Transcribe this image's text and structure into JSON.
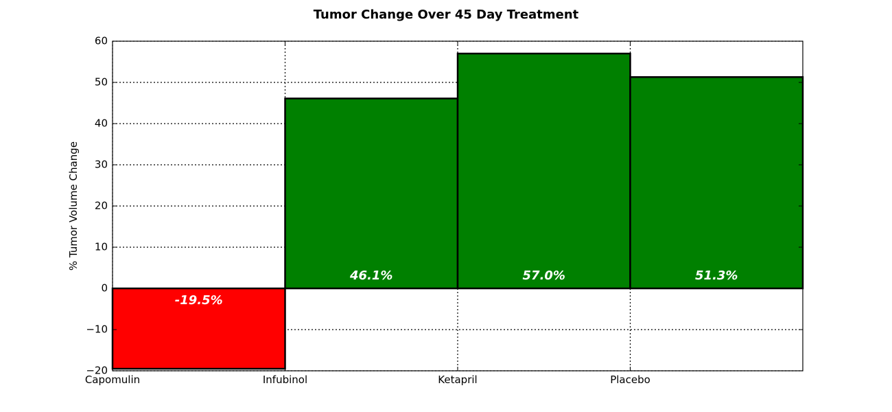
{
  "chart_data": {
    "type": "bar",
    "title": "Tumor Change Over 45 Day Treatment",
    "xlabel": "",
    "ylabel": "% Tumor Volume Change",
    "categories": [
      "Capomulin",
      "Infubinol",
      "Ketapril",
      "Placebo"
    ],
    "values": [
      -19.5,
      46.1,
      57.0,
      51.3
    ],
    "data_labels": [
      "-19.5%",
      "46.1%",
      "57.0%",
      "51.3%"
    ],
    "ylim": [
      -20,
      60
    ],
    "yticks": [
      -20,
      -10,
      0,
      10,
      20,
      30,
      40,
      50,
      60
    ],
    "ytick_labels": [
      "−20",
      "−10",
      "0",
      "10",
      "20",
      "30",
      "40",
      "50",
      "60"
    ],
    "grid": true,
    "colors": {
      "negative": "#ff0000",
      "positive": "#008000",
      "edge": "#000000"
    }
  }
}
